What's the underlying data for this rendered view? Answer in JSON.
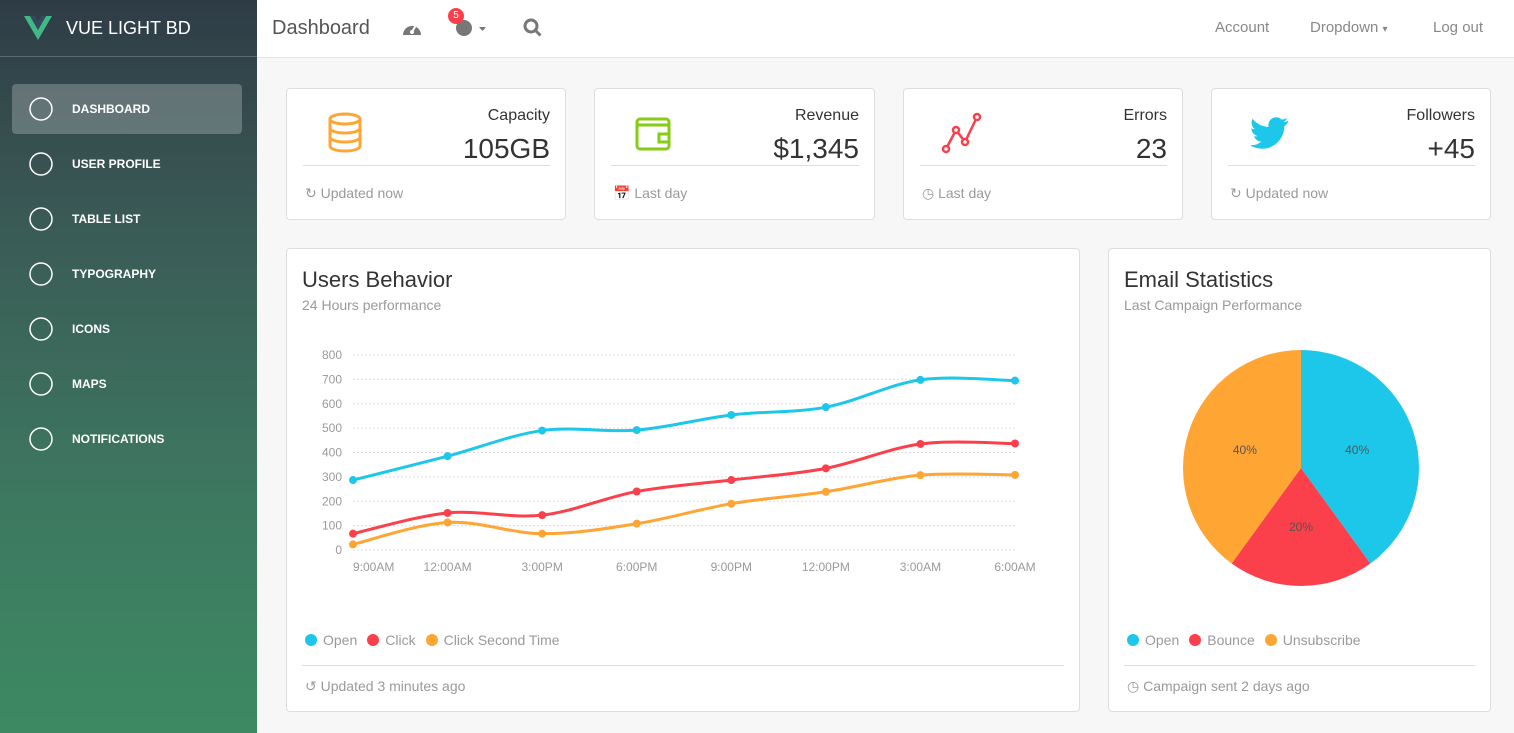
{
  "sidebar": {
    "brand": "VUE LIGHT BD",
    "items": [
      "DASHBOARD",
      "USER PROFILE",
      "TABLE LIST",
      "TYPOGRAPHY",
      "ICONS",
      "MAPS",
      "NOTIFICATIONS"
    ]
  },
  "navbar": {
    "title": "Dashboard",
    "notifications": "5",
    "links": [
      "Account",
      "Dropdown",
      "Log out"
    ]
  },
  "stats": [
    {
      "label": "Capacity",
      "value": "105GB",
      "footer": "Updated now"
    },
    {
      "label": "Revenue",
      "value": "$1,345",
      "footer": "Last day"
    },
    {
      "label": "Errors",
      "value": "23",
      "footer": "Last day"
    },
    {
      "label": "Followers",
      "value": "+45",
      "footer": "Updated now"
    }
  ],
  "chart_data": [
    {
      "type": "line",
      "title": "Users Behavior",
      "subtitle": "24 Hours performance",
      "footer": "Updated 3 minutes ago",
      "categories": [
        "9:00AM",
        "12:00AM",
        "3:00PM",
        "6:00PM",
        "9:00PM",
        "12:00PM",
        "3:00AM",
        "6:00AM"
      ],
      "ylim": [
        0,
        800
      ],
      "yticks": [
        0,
        100,
        200,
        300,
        400,
        500,
        600,
        700,
        800
      ],
      "grid": true,
      "series": [
        {
          "name": "Open",
          "color": "#1dc7ea",
          "values": [
            287,
            385,
            490,
            492,
            554,
            586,
            698,
            695
          ]
        },
        {
          "name": "Click",
          "color": "#fb404b",
          "values": [
            67,
            152,
            143,
            240,
            287,
            335,
            435,
            437
          ]
        },
        {
          "name": "Click Second Time",
          "color": "#ffa534",
          "values": [
            23,
            113,
            67,
            108,
            190,
            239,
            307,
            308
          ]
        }
      ]
    },
    {
      "type": "pie",
      "title": "Email Statistics",
      "subtitle": "Last Campaign Performance",
      "footer": "Campaign sent 2 days ago",
      "categories": [
        "Open",
        "Bounce",
        "Unsubscribe"
      ],
      "values": [
        40,
        20,
        40
      ],
      "value_labels": [
        "40%",
        "20%",
        "40%"
      ],
      "colors": [
        "#1dc7ea",
        "#fb404b",
        "#ffa534"
      ]
    }
  ]
}
